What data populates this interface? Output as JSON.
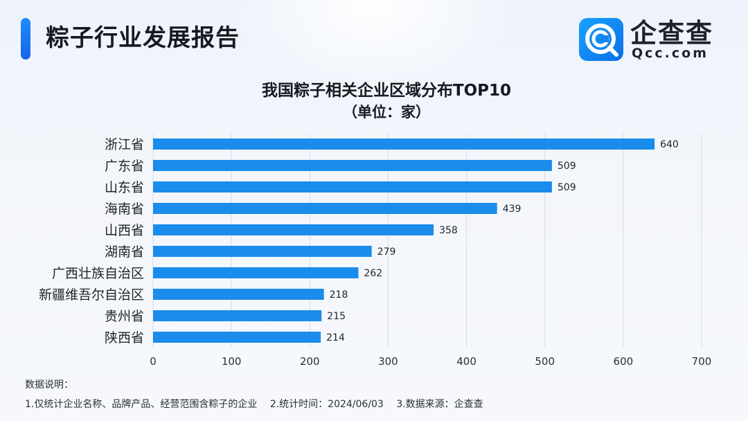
{
  "header": {
    "title": "粽子行业发展报告"
  },
  "logo": {
    "name": "企查查",
    "domain": "Qcc.com",
    "icon": "qcc-magnifier-icon",
    "colors": {
      "badge": "#1a8cff",
      "text": "#1f2329"
    }
  },
  "notes": {
    "heading": "数据说明：",
    "items": [
      "1.仅统计企业名称、品牌产品、经营范围含粽子的企业",
      "2.统计时间：2024/06/03",
      "3.数据来源：企查查"
    ]
  },
  "chart_data": {
    "type": "bar",
    "orientation": "horizontal",
    "title": "我国粽子相关企业区域分布TOP10",
    "subtitle": "（单位：家）",
    "categories": [
      "浙江省",
      "广东省",
      "山东省",
      "海南省",
      "山西省",
      "湖南省",
      "广西壮族自治区",
      "新疆维吾尔自治区",
      "贵州省",
      "陕西省"
    ],
    "values": [
      640,
      509,
      509,
      439,
      358,
      279,
      262,
      218,
      215,
      214
    ],
    "xlim": [
      0,
      700
    ],
    "xticks": [
      0,
      100,
      200,
      300,
      400,
      500,
      600,
      700
    ],
    "grid": "vertical",
    "data_labels": true,
    "bar_color": "#1a8ceb",
    "grid_color": "#d5dbe4"
  }
}
